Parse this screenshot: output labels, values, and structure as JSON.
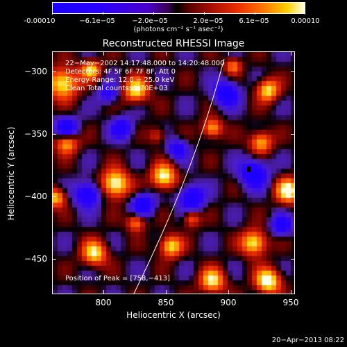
{
  "colorbar": {
    "ticks": [
      "-0.00010",
      "−6.1e−05",
      "−2.0e−05",
      "2.0e−05",
      "6.1e−05",
      "0.00010"
    ],
    "units": "(photons cm⁻² s⁻¹ asec⁻²)",
    "min": -0.0001,
    "max": 0.0001
  },
  "plot": {
    "title": "Reconstructed RHESSI Image",
    "annotations": {
      "time": "22−May−2002 14:17:48.000 to 14:20:48.000",
      "detectors": "Detectors: 4F 5F 6F 7F 8F, Att 0",
      "energy": "Energy Range: 12.0 − 25.0 keV",
      "clean": "Clean    Total counts: 1.70E+03",
      "peak": "Position of Peak = [758,−413]"
    },
    "xlabel": "Heliocentric X (arcsec)",
    "ylabel": "Heliocentric Y (arcsec)",
    "xticks": [
      "800",
      "850",
      "900",
      "950"
    ],
    "yticks": [
      "−300",
      "−350",
      "−400",
      "−450"
    ]
  },
  "chart_data": {
    "type": "heatmap",
    "title": "Reconstructed RHESSI Image",
    "xlabel": "Heliocentric X (arcsec)",
    "ylabel": "Heliocentric Y (arcsec)",
    "xlim": [
      760,
      955
    ],
    "ylim": [
      -475,
      -280
    ],
    "x_ticks": [
      800,
      850,
      900,
      950
    ],
    "y_ticks": [
      -300,
      -350,
      -400,
      -450
    ],
    "colorbar_range": [
      -0.0001,
      0.0001
    ],
    "colorbar_ticks": [
      -0.0001,
      -6.1e-05,
      -2e-05,
      2e-05,
      6.1e-05,
      0.0001
    ],
    "colormap": "blue-black-red-yellow-white",
    "limb_overlay": true,
    "peak_position": [
      758,
      -413
    ]
  },
  "footer": {
    "date": "20−Apr−2013 08:22"
  }
}
